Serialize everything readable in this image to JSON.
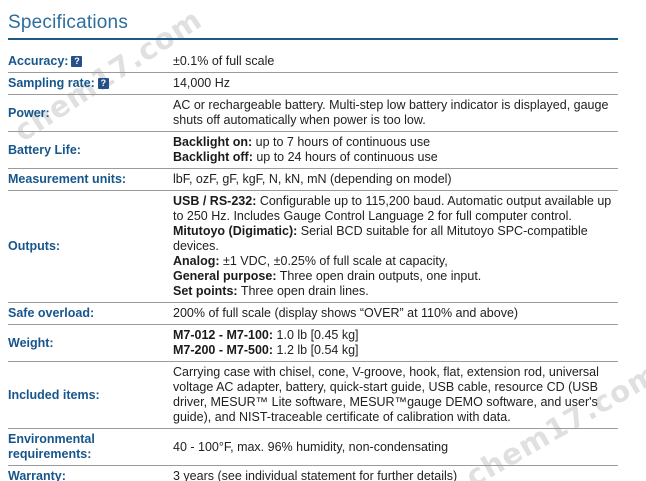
{
  "page": {
    "title": "Specifications"
  },
  "watermarks": [
    "chem17.com",
    "chem17.com"
  ],
  "help_icon_glyph": "?",
  "table": {
    "rows": [
      {
        "label": "Accuracy:",
        "help": true,
        "lines": [
          [
            {
              "text": "±0.1% of full scale"
            }
          ]
        ]
      },
      {
        "label": "Sampling rate:",
        "help": true,
        "lines": [
          [
            {
              "text": "14,000 Hz"
            }
          ]
        ]
      },
      {
        "label": "Power:",
        "lines": [
          [
            {
              "text": "AC or rechargeable battery. Multi-step low battery indicator is displayed, gauge shuts off automatically when power is too low."
            }
          ]
        ]
      },
      {
        "label": "Battery Life:",
        "lines": [
          [
            {
              "text": "Backlight on:",
              "bold": true
            },
            {
              "text": " up to 7 hours of continuous use"
            }
          ],
          [
            {
              "text": "Backlight off:",
              "bold": true
            },
            {
              "text": " up to 24 hours of continuous use"
            }
          ]
        ]
      },
      {
        "label": "Measurement units:",
        "lines": [
          [
            {
              "text": "lbF, ozF, gF, kgF, N, kN, mN (depending on model)"
            }
          ]
        ]
      },
      {
        "label": "Outputs:",
        "lines": [
          [
            {
              "text": "USB / RS-232:",
              "bold": true
            },
            {
              "text": " Configurable up to 115,200 baud. Automatic output available up to 250 Hz. Includes Gauge Control Language 2 for full computer control."
            }
          ],
          [
            {
              "text": "Mitutoyo (Digimatic):",
              "bold": true
            },
            {
              "text": " Serial BCD suitable for all Mitutoyo SPC-compatible devices."
            }
          ],
          [
            {
              "text": "Analog:",
              "bold": true
            },
            {
              "text": " ±1 VDC, ±0.25% of full scale at capacity,"
            }
          ],
          [
            {
              "text": "General purpose:",
              "bold": true
            },
            {
              "text": " Three open drain outputs, one input."
            }
          ],
          [
            {
              "text": "Set points:",
              "bold": true
            },
            {
              "text": " Three open drain lines."
            }
          ]
        ]
      },
      {
        "label": "Safe overload:",
        "lines": [
          [
            {
              "text": "200% of full scale (display shows “OVER” at 110% and above)"
            }
          ]
        ]
      },
      {
        "label": "Weight:",
        "lines": [
          [
            {
              "text": "M7-012 - M7-100:",
              "bold": true
            },
            {
              "text": " 1.0 lb [0.45 kg]"
            }
          ],
          [
            {
              "text": "M7-200 - M7-500:",
              "bold": true
            },
            {
              "text": " 1.2 lb [0.54 kg]"
            }
          ]
        ]
      },
      {
        "label": "Included items:",
        "lines": [
          [
            {
              "text": "Carrying case with chisel, cone, V-groove, hook, flat, extension rod, universal voltage AC adapter, battery, quick-start guide, USB cable, resource CD (USB driver, MESUR™ Lite software, MESUR™gauge DEMO software, and user's guide), and NIST-traceable certificate of calibration with data."
            }
          ]
        ]
      },
      {
        "label": "Environmental requirements:",
        "lines": [
          [
            {
              "text": "40 - 100°F, max. 96% humidity, non-condensating"
            }
          ]
        ]
      },
      {
        "label": "Warranty:",
        "lines": [
          [
            {
              "text": "3 years (see individual statement for further details)"
            }
          ]
        ]
      }
    ]
  }
}
